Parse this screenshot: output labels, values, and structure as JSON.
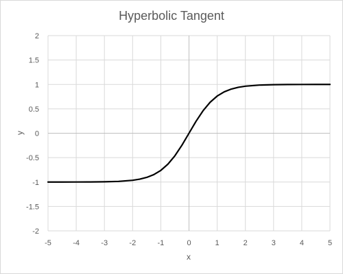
{
  "chart_data": {
    "type": "line",
    "title": "Hyperbolic Tangent",
    "xlabel": "x",
    "ylabel": "y",
    "xlim": [
      -5,
      5
    ],
    "ylim": [
      -2,
      2
    ],
    "x_ticks": [
      -5,
      -4,
      -3,
      -2,
      -1,
      0,
      1,
      2,
      3,
      4,
      5
    ],
    "y_ticks": [
      -2,
      -1.5,
      -1,
      -0.5,
      0,
      0.5,
      1,
      1.5,
      2
    ],
    "x_tick_labels": [
      "-5",
      "-4",
      "-3",
      "-2",
      "-1",
      "0",
      "1",
      "2",
      "3",
      "4",
      "5"
    ],
    "y_tick_labels": [
      "-2",
      "-1.5",
      "-1",
      "-0.5",
      "0",
      "0.5",
      "1",
      "1.5",
      "2"
    ],
    "grid": true,
    "series": [
      {
        "color": "#000000",
        "x": [
          -5,
          -4.5,
          -4,
          -3.5,
          -3,
          -2.5,
          -2,
          -1.75,
          -1.5,
          -1.25,
          -1,
          -0.75,
          -0.5,
          -0.25,
          0,
          0.25,
          0.5,
          0.75,
          1,
          1.25,
          1.5,
          1.75,
          2,
          2.5,
          3,
          3.5,
          4,
          4.5,
          5
        ],
        "y": [
          -0.9999,
          -0.9998,
          -0.9993,
          -0.9982,
          -0.9951,
          -0.9866,
          -0.964,
          -0.9414,
          -0.9051,
          -0.8483,
          -0.7616,
          -0.6351,
          -0.4621,
          -0.2449,
          0,
          0.2449,
          0.4621,
          0.6351,
          0.7616,
          0.8483,
          0.9051,
          0.9414,
          0.964,
          0.9866,
          0.9951,
          0.9982,
          0.9993,
          0.9998,
          0.9999
        ]
      }
    ]
  },
  "colors": {
    "grid": "#d9d9d9",
    "zero_axis": "#bfbfbf",
    "text": "#595959",
    "line": "#000000"
  }
}
